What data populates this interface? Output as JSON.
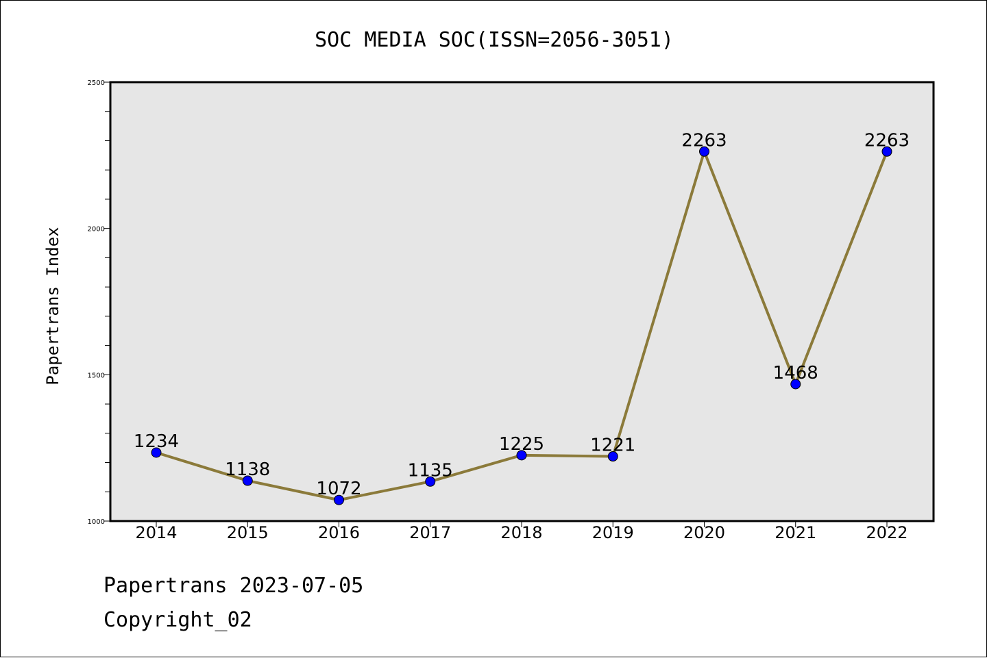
{
  "chart_data": {
    "type": "line",
    "title": "SOC MEDIA SOC(ISSN=2056-3051)",
    "xlabel": "",
    "ylabel": "Papertrans Index",
    "categories": [
      "2014",
      "2015",
      "2016",
      "2017",
      "2018",
      "2019",
      "2020",
      "2021",
      "2022"
    ],
    "series": [
      {
        "values": [
          1234,
          1138,
          1072,
          1135,
          1225,
          1221,
          2263,
          1468,
          2263
        ]
      }
    ],
    "ylim": [
      1000,
      2500
    ],
    "yticks": [
      "1000",
      "1500",
      "2000",
      "2500"
    ],
    "grid": false,
    "line_color": "#8b7a3a",
    "marker_color": "#0000ff",
    "plot_background": "#e6e6e6"
  },
  "footer": {
    "line1": "Papertrans 2023-07-05",
    "line2": "Copyright_02"
  }
}
